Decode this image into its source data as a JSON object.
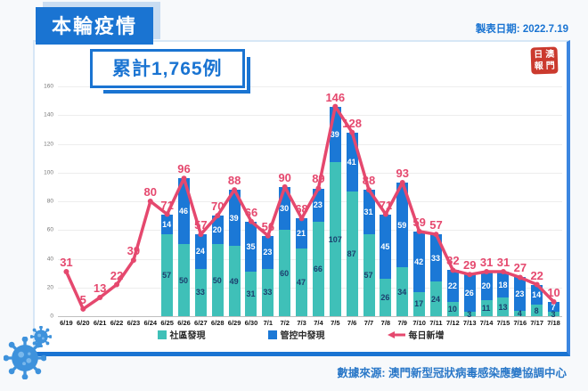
{
  "header": {
    "title": "本輪疫情",
    "date_label": "製表日期: 2022.7.19"
  },
  "summary": {
    "cumulative_label": "累計1,765例"
  },
  "seal": {
    "chars": [
      "日",
      "澳",
      "報",
      "門"
    ]
  },
  "footer": {
    "source": "數據來源: 澳門新型冠狀病毒感染應變協調中心"
  },
  "colors": {
    "header_blue": "#1a74d2",
    "community_teal": "#3fc0b8",
    "controlled_blue": "#1b78d6",
    "line_red": "#e5486e",
    "seal_red": "#cb3a2e",
    "footer_blue": "#2a78c8"
  },
  "chart_data": {
    "type": "bar",
    "stacked": true,
    "grid": true,
    "legend_position": "bottom",
    "ylim": [
      0,
      160
    ],
    "ytick_step": 20,
    "categories": [
      "6/19",
      "6/20",
      "6/21",
      "6/22",
      "6/23",
      "6/24",
      "6/25",
      "6/26",
      "6/27",
      "6/28",
      "6/29",
      "6/30",
      "7/1",
      "7/2",
      "7/3",
      "7/4",
      "7/5",
      "7/6",
      "7/7",
      "7/8",
      "7/9",
      "7/10",
      "7/11",
      "7/12",
      "7/13",
      "7/14",
      "7/15",
      "7/16",
      "7/17",
      "7/18"
    ],
    "series": [
      {
        "name": "社區發現",
        "color": "#3fc0b8",
        "values": [
          0,
          0,
          0,
          0,
          0,
          0,
          57,
          50,
          33,
          50,
          49,
          31,
          33,
          60,
          47,
          66,
          107,
          87,
          57,
          26,
          34,
          17,
          24,
          10,
          3,
          11,
          13,
          4,
          8,
          3
        ]
      },
      {
        "name": "管控中發現",
        "color": "#1b78d6",
        "values": [
          0,
          0,
          0,
          0,
          0,
          0,
          14,
          46,
          24,
          20,
          39,
          35,
          23,
          30,
          21,
          23,
          39,
          41,
          31,
          45,
          59,
          42,
          33,
          22,
          26,
          20,
          18,
          23,
          14,
          7
        ]
      }
    ],
    "line_series": {
      "name": "每日新增",
      "color": "#e5486e",
      "values": [
        31,
        5,
        13,
        22,
        39,
        80,
        71,
        96,
        57,
        70,
        88,
        66,
        56,
        90,
        68,
        89,
        146,
        128,
        88,
        71,
        93,
        59,
        57,
        32,
        29,
        31,
        31,
        27,
        22,
        10
      ]
    }
  }
}
